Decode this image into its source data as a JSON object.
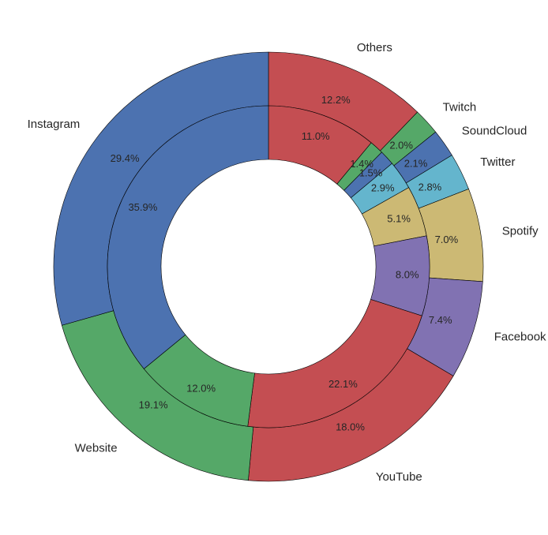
{
  "chart_data": {
    "type": "pie",
    "variant": "nested-donut",
    "title": "",
    "categories": [
      "Others",
      "Twitch",
      "SoundCloud",
      "Twitter",
      "Spotify",
      "Facebook",
      "YouTube",
      "Website",
      "Instagram"
    ],
    "colors": {
      "Others": "#c44e52",
      "Twitch": "#55a868",
      "SoundCloud": "#4c72b0",
      "Twitter": "#64b5cd",
      "Spotify": "#ccb974",
      "Facebook": "#8172b2",
      "YouTube": "#c44e52",
      "Website": "#55a868",
      "Instagram": "#4c72b0"
    },
    "outer_ring": {
      "values": [
        12.2,
        2.0,
        2.1,
        2.8,
        7.0,
        7.4,
        18.0,
        19.1,
        29.4
      ],
      "labels": [
        "12.2%",
        "2.0%",
        "2.1%",
        "2.8%",
        "7.0%",
        "7.4%",
        "18.0%",
        "19.1%",
        "29.4%"
      ]
    },
    "inner_ring": {
      "values": [
        11.0,
        1.4,
        1.5,
        2.9,
        5.1,
        8.0,
        22.1,
        12.0,
        35.9
      ],
      "labels": [
        "11.0%",
        "1.4%",
        "1.5%",
        "2.9%",
        "5.1%",
        "8.0%",
        "22.1%",
        "12.0%",
        "35.9%"
      ]
    },
    "start_angle": "top (12 o'clock)",
    "direction": "clockwise",
    "legend": "none (category labels outside outer ring)"
  }
}
